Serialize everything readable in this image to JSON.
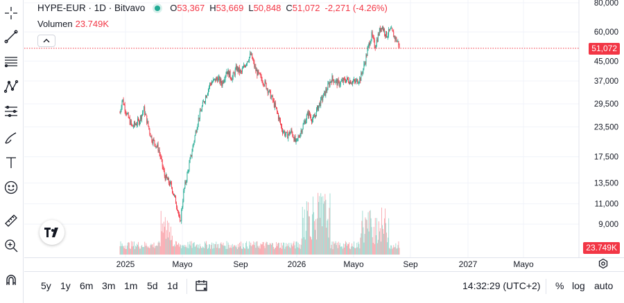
{
  "legend": {
    "symbol": "HYPE-EUR · 1D · Bitvavo",
    "open_key": "O",
    "open": "53,367",
    "high_key": "H",
    "high": "53,669",
    "low_key": "L",
    "low": "50,848",
    "close_key": "C",
    "close": "51,072",
    "change": "-2,271 (-4.26%)",
    "status_color": "#22ab94"
  },
  "volume_legend": {
    "label": "Volumen",
    "value": "23.749K"
  },
  "price_axis": {
    "last_price_label": "51,072",
    "volume_label": "23.749K",
    "scale": "log"
  },
  "time_axis": {
    "labels": [
      "2025",
      "Mayo",
      "Sep",
      "2026",
      "Mayo",
      "Sep",
      "2027",
      "Mayo"
    ]
  },
  "bottom_bar": {
    "ranges": [
      "5y",
      "1y",
      "6m",
      "3m",
      "1m",
      "5d",
      "1d"
    ],
    "clock": "14:32:29 (UTC+2)",
    "percent": "%",
    "log": "log",
    "auto": "auto"
  },
  "colors": {
    "up": "#22ab94",
    "down": "#f23645",
    "grid": "#f0f3fa",
    "price_line": "#f23645"
  },
  "icons": [
    "crosshair-icon",
    "trend-line-icon",
    "fib-icon",
    "pattern-icon",
    "projection-icon",
    "brush-icon",
    "text-icon",
    "emoji-icon",
    "ruler-icon",
    "zoom-in-icon",
    "magnet-icon",
    "calendar-icon",
    "gear-icon",
    "chevron-up-icon"
  ],
  "chart_data": {
    "type": "candlestick",
    "x_range": [
      "2024-12-05",
      "2026-08-20"
    ],
    "y_scale": "log",
    "y_ticks": [
      9000,
      11000,
      13500,
      17500,
      23500,
      29500,
      37000,
      45000,
      60000,
      80000
    ],
    "y_tick_labels": [
      "9,000",
      "11,000",
      "13,500",
      "17,500",
      "23,500",
      "29,500",
      "37,000",
      "45,000",
      "60,000",
      "80,000"
    ],
    "last_close": 51072,
    "path": [
      [
        "2024-12-05",
        27000
      ],
      [
        "2024-12-10",
        31000
      ],
      [
        "2024-12-20",
        26500
      ],
      [
        "2024-12-31",
        23500
      ],
      [
        "2025-01-15",
        25000
      ],
      [
        "2025-01-25",
        28000
      ],
      [
        "2025-02-10",
        21000
      ],
      [
        "2025-02-25",
        19000
      ],
      [
        "2025-03-10",
        14500
      ],
      [
        "2025-03-25",
        13000
      ],
      [
        "2025-04-07",
        10500
      ],
      [
        "2025-04-12",
        9000
      ],
      [
        "2025-04-20",
        12500
      ],
      [
        "2025-05-05",
        17500
      ],
      [
        "2025-05-20",
        25000
      ],
      [
        "2025-06-01",
        30000
      ],
      [
        "2025-06-15",
        36000
      ],
      [
        "2025-07-01",
        38000
      ],
      [
        "2025-07-10",
        36000
      ],
      [
        "2025-07-20",
        41000
      ],
      [
        "2025-08-01",
        38000
      ],
      [
        "2025-08-10",
        42000
      ],
      [
        "2025-08-20",
        40000
      ],
      [
        "2025-09-01",
        45000
      ],
      [
        "2025-09-10",
        48000
      ],
      [
        "2025-09-20",
        41000
      ],
      [
        "2025-10-01",
        38000
      ],
      [
        "2025-10-10",
        36000
      ],
      [
        "2025-10-25",
        31000
      ],
      [
        "2025-11-05",
        27000
      ],
      [
        "2025-11-15",
        23000
      ],
      [
        "2025-11-25",
        21500
      ],
      [
        "2025-12-05",
        22500
      ],
      [
        "2025-12-15",
        20000
      ],
      [
        "2025-12-25",
        22500
      ],
      [
        "2026-01-10",
        27000
      ],
      [
        "2026-01-20",
        25000
      ],
      [
        "2026-02-01",
        29000
      ],
      [
        "2026-02-15",
        33000
      ],
      [
        "2026-03-01",
        38000
      ],
      [
        "2026-03-15",
        36000
      ],
      [
        "2026-04-01",
        37500
      ],
      [
        "2026-04-20",
        36500
      ],
      [
        "2026-05-01",
        38000
      ],
      [
        "2026-05-10",
        44000
      ],
      [
        "2026-05-20",
        54000
      ],
      [
        "2026-05-25",
        58000
      ],
      [
        "2026-06-01",
        52000
      ],
      [
        "2026-06-10",
        60000
      ],
      [
        "2026-06-15",
        64000
      ],
      [
        "2026-06-25",
        58000
      ],
      [
        "2026-07-05",
        61000
      ],
      [
        "2026-07-15",
        56000
      ],
      [
        "2026-07-22",
        53367
      ],
      [
        "2026-07-24",
        51072
      ]
    ],
    "volume_max": 24000
  }
}
